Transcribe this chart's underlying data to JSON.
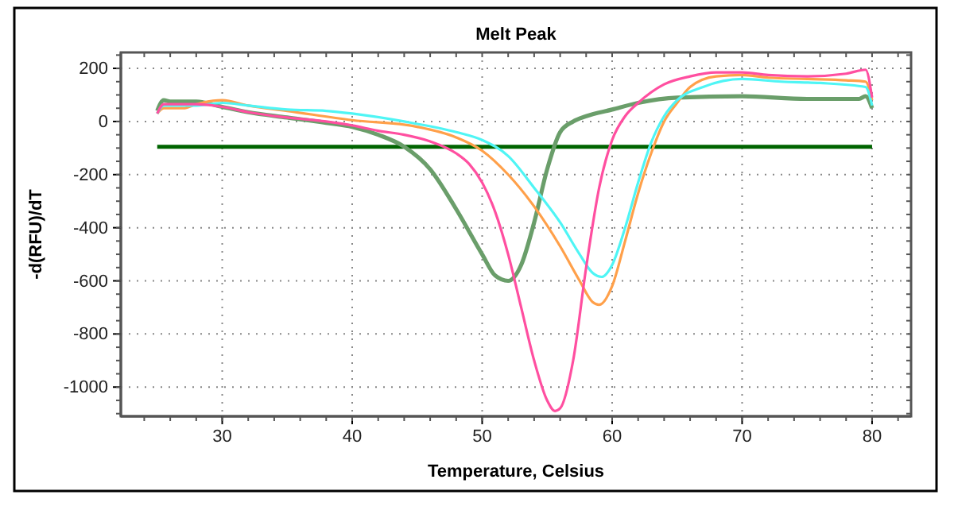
{
  "chart_data": {
    "type": "line",
    "title": "Melt Peak",
    "xlabel": "Temperature, Celsius",
    "ylabel": "-d(RFU)/dT",
    "xlim": [
      22.2,
      83
    ],
    "ylim": [
      -1110,
      260
    ],
    "xticks": [
      30,
      40,
      50,
      60,
      70,
      80
    ],
    "yticks": [
      {
        "value": -1000,
        "label": "-1000"
      },
      {
        "value": -800,
        "label": "-800"
      },
      {
        "value": -600,
        "label": "-600"
      },
      {
        "value": -400,
        "label": "-400"
      },
      {
        "value": -200,
        "label": "-200"
      },
      0,
      200
    ],
    "grid": true,
    "marker": "none",
    "line_style": "solid",
    "ref_lines": [
      {
        "axis": "y",
        "value": -95,
        "color": "#006400"
      }
    ],
    "series": [
      {
        "color": "#6a9e6a",
        "x": [
          25,
          25.5,
          26,
          28,
          30,
          32,
          35,
          38,
          40,
          42,
          44,
          46,
          48,
          50,
          51,
          52,
          53,
          54,
          55,
          56,
          57,
          58,
          60,
          62,
          65,
          70,
          75,
          79,
          79.5,
          80
        ],
        "values": [
          40,
          80,
          75,
          75,
          55,
          35,
          15,
          -5,
          -20,
          -50,
          -95,
          -180,
          -330,
          -500,
          -580,
          -600,
          -540,
          -380,
          -180,
          -40,
          0,
          20,
          45,
          70,
          90,
          95,
          85,
          85,
          95,
          50
        ]
      },
      {
        "color": "#ffa04a",
        "x": [
          25,
          25.5,
          27,
          28,
          30,
          32,
          35,
          40,
          45,
          48,
          50,
          52,
          54,
          56,
          57.5,
          58.5,
          59,
          60,
          61,
          62,
          63,
          64,
          65,
          66,
          68,
          70,
          72,
          75,
          78,
          79.5,
          80
        ],
        "values": [
          30,
          50,
          50,
          65,
          80,
          60,
          40,
          5,
          -20,
          -60,
          -110,
          -200,
          -320,
          -470,
          -600,
          -680,
          -690,
          -620,
          -450,
          -270,
          -120,
          0,
          70,
          130,
          170,
          175,
          165,
          160,
          155,
          150,
          80
        ]
      },
      {
        "color": "#4ff5f5",
        "x": [
          25,
          25.5,
          28,
          30,
          32,
          35,
          38,
          40,
          44,
          48,
          50,
          52,
          54,
          56,
          57.5,
          58.5,
          59.2,
          60,
          61,
          62,
          63,
          64,
          65,
          67,
          70,
          73,
          76,
          79.5,
          80
        ],
        "values": [
          30,
          60,
          60,
          70,
          60,
          45,
          40,
          30,
          0,
          -40,
          -70,
          -130,
          -250,
          -380,
          -500,
          -570,
          -585,
          -540,
          -400,
          -230,
          -80,
          20,
          80,
          130,
          160,
          150,
          145,
          130,
          60
        ]
      },
      {
        "color": "#ff4fa0",
        "x": [
          25,
          25.5,
          28,
          30,
          32,
          35,
          38,
          40,
          42,
          44,
          46,
          48,
          49,
          50,
          51,
          52,
          53,
          54,
          55,
          55.6,
          56,
          57,
          58,
          59,
          60,
          61,
          62,
          64,
          66,
          68,
          70,
          72,
          75,
          78,
          79.5,
          80
        ],
        "values": [
          30,
          65,
          65,
          55,
          35,
          15,
          0,
          -15,
          -35,
          -50,
          -75,
          -120,
          -160,
          -230,
          -340,
          -500,
          -700,
          -900,
          -1050,
          -1090,
          -1080,
          -900,
          -550,
          -250,
          -70,
          20,
          70,
          140,
          170,
          185,
          185,
          175,
          170,
          180,
          195,
          90
        ]
      }
    ]
  }
}
